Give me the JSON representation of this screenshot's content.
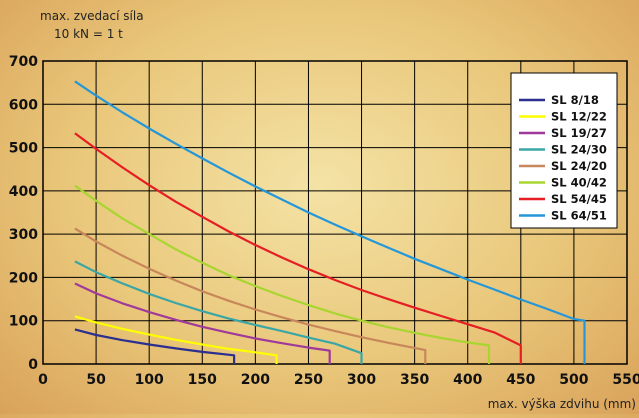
{
  "chart_data": {
    "type": "line",
    "ylabel_line1": "max. zvedací síla",
    "ylabel_line2": "10 kN = 1 t",
    "xlabel": "max. výška zdvihu (mm)",
    "xlim": [
      0,
      550
    ],
    "ylim": [
      0,
      700
    ],
    "x_ticks": [
      0,
      50,
      100,
      150,
      200,
      250,
      300,
      350,
      400,
      450,
      500,
      550
    ],
    "y_ticks": [
      0,
      100,
      200,
      300,
      400,
      500,
      600,
      700
    ],
    "grid": true,
    "legend_position": "top-right",
    "series": [
      {
        "name": "SL 8/18",
        "color": "#2b2f8f",
        "points": [
          [
            30,
            80
          ],
          [
            50,
            67
          ],
          [
            75,
            55
          ],
          [
            100,
            45
          ],
          [
            125,
            36
          ],
          [
            150,
            28
          ],
          [
            180,
            20
          ]
        ],
        "end_drop": 0
      },
      {
        "name": "SL 12/22",
        "color": "#ffff00",
        "points": [
          [
            30,
            110
          ],
          [
            50,
            96
          ],
          [
            75,
            81
          ],
          [
            100,
            68
          ],
          [
            125,
            56
          ],
          [
            150,
            45
          ],
          [
            175,
            35
          ],
          [
            200,
            27
          ],
          [
            220,
            20
          ]
        ],
        "end_drop": 0
      },
      {
        "name": "SL 19/27",
        "color": "#a03a9a",
        "points": [
          [
            30,
            186
          ],
          [
            50,
            163
          ],
          [
            75,
            140
          ],
          [
            100,
            120
          ],
          [
            125,
            102
          ],
          [
            150,
            86
          ],
          [
            175,
            72
          ],
          [
            200,
            59
          ],
          [
            225,
            48
          ],
          [
            250,
            38
          ],
          [
            270,
            31
          ]
        ],
        "end_drop": 0
      },
      {
        "name": "SL 24/30",
        "color": "#3aa6a6",
        "points": [
          [
            30,
            237
          ],
          [
            50,
            212
          ],
          [
            75,
            186
          ],
          [
            100,
            162
          ],
          [
            125,
            141
          ],
          [
            150,
            122
          ],
          [
            175,
            105
          ],
          [
            200,
            90
          ],
          [
            225,
            76
          ],
          [
            250,
            61
          ],
          [
            275,
            47
          ],
          [
            300,
            25
          ]
        ],
        "end_drop": 0
      },
      {
        "name": "SL 24/20",
        "color": "#c8875a",
        "points": [
          [
            30,
            313
          ],
          [
            50,
            283
          ],
          [
            75,
            250
          ],
          [
            100,
            220
          ],
          [
            125,
            193
          ],
          [
            150,
            168
          ],
          [
            175,
            146
          ],
          [
            200,
            126
          ],
          [
            225,
            108
          ],
          [
            250,
            91
          ],
          [
            275,
            76
          ],
          [
            300,
            62
          ],
          [
            325,
            49
          ],
          [
            360,
            32
          ]
        ],
        "end_drop": 0
      },
      {
        "name": "SL 40/42",
        "color": "#a8d530",
        "points": [
          [
            30,
            412
          ],
          [
            50,
            377
          ],
          [
            75,
            336
          ],
          [
            100,
            300
          ],
          [
            125,
            265
          ],
          [
            150,
            234
          ],
          [
            175,
            205
          ],
          [
            200,
            180
          ],
          [
            225,
            157
          ],
          [
            250,
            136
          ],
          [
            275,
            117
          ],
          [
            300,
            100
          ],
          [
            325,
            85
          ],
          [
            350,
            72
          ],
          [
            375,
            60
          ],
          [
            400,
            50
          ],
          [
            420,
            43
          ]
        ],
        "end_drop": 0
      },
      {
        "name": "SL 54/45",
        "color": "#e51e24",
        "points": [
          [
            30,
            533
          ],
          [
            50,
            497
          ],
          [
            75,
            454
          ],
          [
            100,
            413
          ],
          [
            125,
            375
          ],
          [
            150,
            340
          ],
          [
            175,
            306
          ],
          [
            200,
            275
          ],
          [
            225,
            246
          ],
          [
            250,
            219
          ],
          [
            275,
            194
          ],
          [
            300,
            171
          ],
          [
            325,
            150
          ],
          [
            350,
            130
          ],
          [
            375,
            111
          ],
          [
            400,
            92
          ],
          [
            425,
            73
          ],
          [
            450,
            43
          ]
        ],
        "end_drop": 0
      },
      {
        "name": "SL 64/51",
        "color": "#2596d8",
        "points": [
          [
            30,
            653
          ],
          [
            50,
            620
          ],
          [
            75,
            581
          ],
          [
            100,
            544
          ],
          [
            125,
            509
          ],
          [
            150,
            475
          ],
          [
            175,
            442
          ],
          [
            200,
            410
          ],
          [
            225,
            380
          ],
          [
            250,
            350
          ],
          [
            275,
            322
          ],
          [
            300,
            295
          ],
          [
            325,
            269
          ],
          [
            350,
            243
          ],
          [
            375,
            219
          ],
          [
            400,
            195
          ],
          [
            425,
            172
          ],
          [
            450,
            149
          ],
          [
            475,
            127
          ],
          [
            500,
            104
          ],
          [
            510,
            100
          ],
          [
            510,
            20
          ]
        ],
        "end_drop": 0
      }
    ]
  }
}
